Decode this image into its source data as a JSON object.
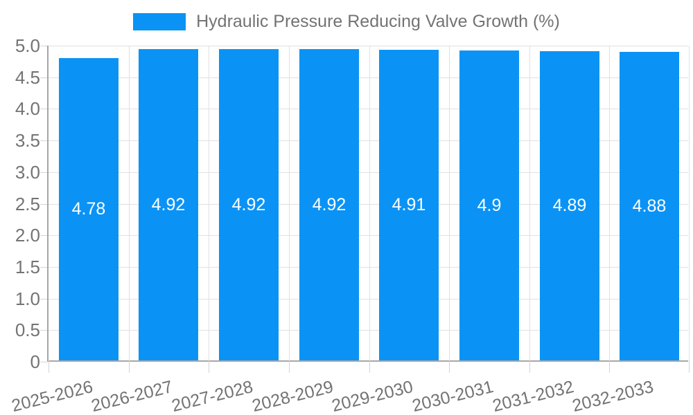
{
  "chart_data": {
    "type": "bar",
    "legend": "Hydraulic Pressure Reducing Valve Growth (%)",
    "categories": [
      "2025-2026",
      "2026-2027",
      "2027-2028",
      "2028-2029",
      "2029-2030",
      "2030-2031",
      "2031-2032",
      "2032-2033"
    ],
    "values": [
      4.78,
      4.92,
      4.92,
      4.92,
      4.91,
      4.9,
      4.89,
      4.88
    ],
    "value_labels": [
      "4.78",
      "4.92",
      "4.92",
      "4.92",
      "4.91",
      "4.9",
      "4.89",
      "4.88"
    ],
    "title": "",
    "xlabel": "",
    "ylabel": "",
    "ylim": [
      0,
      5
    ],
    "ytick_labels": [
      "5.0",
      "4.5",
      "4.0",
      "3.5",
      "3.0",
      "2.5",
      "2.0",
      "1.5",
      "1.0",
      "0.5",
      "0"
    ],
    "grid": "on",
    "legend_position": "top-center",
    "colors": {
      "bar": "#0a93f5",
      "grid": "#e0e0e0",
      "axis": "#a6a6a6",
      "tick": "#d4d4d4",
      "text": "#737373",
      "value_label": "#ffffff"
    }
  }
}
